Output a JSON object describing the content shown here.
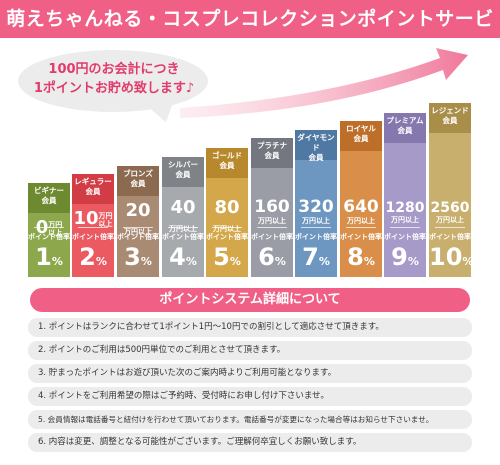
{
  "header": {
    "title": "萌えちゃんねる・コスプレコレクションポイントサービス"
  },
  "bubble": {
    "line1": "100円のお会計につき",
    "line2": "1ポイントお貯め致します♪"
  },
  "tiers": [
    {
      "name_line1": "ビギナー",
      "name_line2": "会員",
      "amount": "0",
      "amount_unit_line1": "万円",
      "amount_unit_line2": "以上",
      "rate_label": "ポイント倍率",
      "rate": "1",
      "rate_unit": "%",
      "color": "#8da84c",
      "tag_color": "#6d8a30"
    },
    {
      "name_line1": "レギュラー",
      "name_line2": "会員",
      "amount": "10",
      "amount_unit_line1": "万円",
      "amount_unit_line2": "以上",
      "rate_label": "ポイント倍率",
      "rate": "2",
      "rate_unit": "%",
      "color": "#ea5a60",
      "tag_color": "#d23c44"
    },
    {
      "name_line1": "ブロンズ",
      "name_line2": "会員",
      "amount": "20",
      "amount_unit_line1": "万円以上",
      "amount_unit_line2": "",
      "rate_label": "ポイント倍率",
      "rate": "3",
      "rate_unit": "%",
      "color": "#a98a72",
      "tag_color": "#8b6a50"
    },
    {
      "name_line1": "シルバー",
      "name_line2": "会員",
      "amount": "40",
      "amount_unit_line1": "万円以上",
      "amount_unit_line2": "",
      "rate_label": "ポイント倍率",
      "rate": "4",
      "rate_unit": "%",
      "color": "#a6a9ad",
      "tag_color": "#7f8387"
    },
    {
      "name_line1": "ゴールド",
      "name_line2": "会員",
      "amount": "80",
      "amount_unit_line1": "万円以上",
      "amount_unit_line2": "",
      "rate_label": "ポイント倍率",
      "rate": "5",
      "rate_unit": "%",
      "color": "#d4a84a",
      "tag_color": "#b7892c"
    },
    {
      "name_line1": "プラチナ",
      "name_line2": "会員",
      "amount": "160",
      "amount_unit_line1": "万円以上",
      "amount_unit_line2": "",
      "rate_label": "ポイント倍率",
      "rate": "6",
      "rate_unit": "%",
      "color": "#9b9da6",
      "tag_color": "#74777f"
    },
    {
      "name_line1": "ダイヤモンド",
      "name_line2": "会員",
      "amount": "320",
      "amount_unit_line1": "万円以上",
      "amount_unit_line2": "",
      "rate_label": "ポイント倍率",
      "rate": "7",
      "rate_unit": "%",
      "color": "#6d97c0",
      "tag_color": "#4f79a3"
    },
    {
      "name_line1": "ロイヤル",
      "name_line2": "会員",
      "amount": "640",
      "amount_unit_line1": "万円以上",
      "amount_unit_line2": "",
      "rate_label": "ポイント倍率",
      "rate": "8",
      "rate_unit": "%",
      "color": "#d98f4a",
      "tag_color": "#bd6f2a"
    },
    {
      "name_line1": "プレミアム",
      "name_line2": "会員",
      "amount": "1280",
      "amount_unit_line1": "万円以上",
      "amount_unit_line2": "",
      "rate_label": "ポイント倍率",
      "rate": "9",
      "rate_unit": "%",
      "color": "#a69ac8",
      "tag_color": "#8578ae"
    },
    {
      "name_line1": "レジェンド",
      "name_line2": "会員",
      "amount": "2560",
      "amount_unit_line1": "万円以上",
      "amount_unit_line2": "",
      "rate_label": "ポイント倍率",
      "rate": "10",
      "rate_unit": "%",
      "color": "#c9af6e",
      "tag_color": "#a98e4a"
    }
  ],
  "system": {
    "title": "ポイントシステム詳細について",
    "rules": [
      "1. ポイントはランクに合わせて1ポイント1円〜10円での割引として適応させて頂きます。",
      "2. ポイントのご利用は500円単位でのご利用とさせて頂きます。",
      "3. 貯まったポイントはお遊び頂いた次のご案内時よりご利用可能となります。",
      "4. ポイントをご利用希望の際はご予約時、受付時にお申し付け下さいませ。",
      "5. 会員情報は電話番号と紐付けを行わせて頂いております。電話番号が変更になった場合等はお知らせ下さいませ。",
      "6. 内容は変更、調整となる可能性がございます。ご理解何卒宜しくお願い致します。"
    ]
  },
  "colors": {
    "accent": "#ef5f86",
    "panel": "#ececec"
  }
}
